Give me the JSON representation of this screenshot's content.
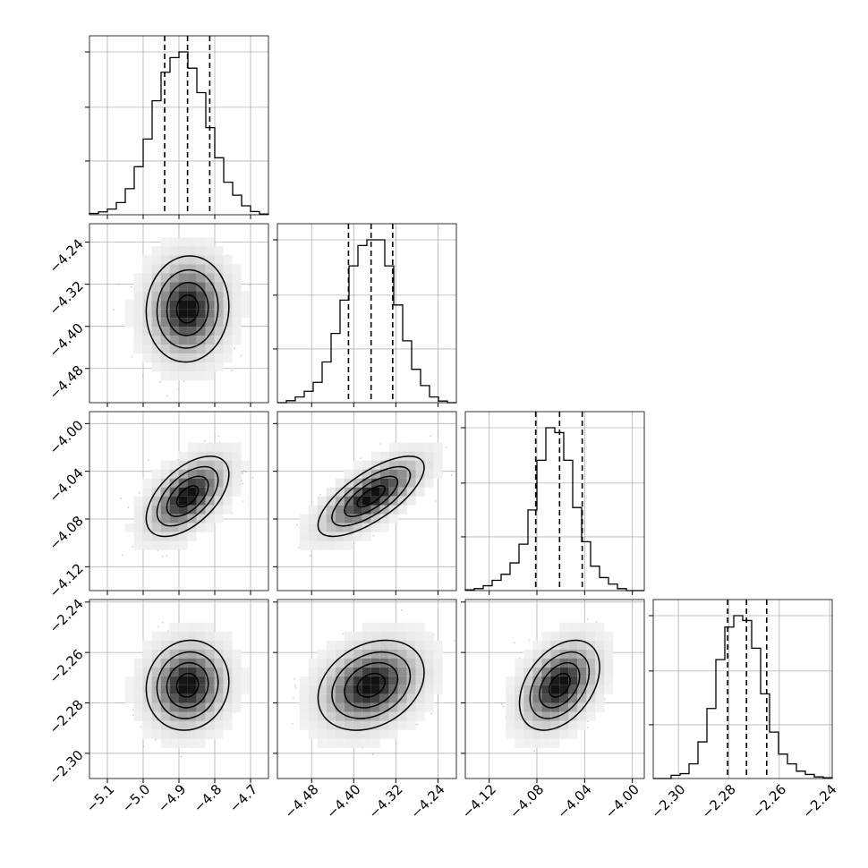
{
  "chart_data": {
    "type": "corner",
    "parameters": [
      {
        "id": "p0",
        "range": [
          -5.15,
          -4.65
        ],
        "ticks": [
          -5.1,
          -5.0,
          -4.9,
          -4.8,
          -4.7
        ],
        "tick_labels": [
          "−5.1",
          "−5.0",
          "−4.9",
          "−4.8",
          "−4.7"
        ],
        "quantiles": [
          -4.94,
          -4.876,
          -4.814
        ],
        "hist": [
          0.008,
          0.018,
          0.035,
          0.075,
          0.16,
          0.295,
          0.465,
          0.7,
          0.875,
          0.965,
          1.0,
          0.9,
          0.75,
          0.535,
          0.35,
          0.2,
          0.12,
          0.055,
          0.02,
          0.005
        ]
      },
      {
        "id": "p1",
        "range": [
          -4.545,
          -4.205
        ],
        "ticks": [
          -4.48,
          -4.4,
          -4.32,
          -4.24
        ],
        "tick_labels": [
          "−4.48",
          "−4.40",
          "−4.32",
          "−4.24"
        ],
        "quantiles": [
          -4.41,
          -4.367,
          -4.326
        ],
        "hist": [
          0.0,
          0.012,
          0.035,
          0.07,
          0.125,
          0.25,
          0.425,
          0.63,
          0.84,
          0.965,
          1.0,
          1.0,
          0.84,
          0.6,
          0.38,
          0.205,
          0.105,
          0.035,
          0.01,
          0.0
        ]
      },
      {
        "id": "p2",
        "range": [
          -4.14,
          -3.99
        ],
        "ticks": [
          -4.12,
          -4.08,
          -4.04,
          -4.0
        ],
        "tick_labels": [
          "−4.12",
          "−4.08",
          "−4.04",
          "−4.00"
        ],
        "quantiles": [
          -4.081,
          -4.061,
          -4.042
        ],
        "hist": [
          0.005,
          0.012,
          0.03,
          0.063,
          0.1,
          0.17,
          0.285,
          0.495,
          0.8,
          1.0,
          0.97,
          0.8,
          0.51,
          0.3,
          0.15,
          0.08,
          0.04,
          0.012,
          0.0,
          0.0
        ]
      },
      {
        "id": "p3",
        "range": [
          -2.31,
          -2.239
        ],
        "ticks": [
          -2.3,
          -2.28,
          -2.26,
          -2.24
        ],
        "tick_labels": [
          "−2.30",
          "−2.28",
          "−2.26",
          "−2.24"
        ],
        "quantiles": [
          -2.2805,
          -2.273,
          -2.265
        ],
        "hist": [
          0.0,
          0.0,
          0.02,
          0.03,
          0.09,
          0.225,
          0.43,
          0.73,
          0.93,
          1.0,
          0.97,
          0.8,
          0.52,
          0.285,
          0.15,
          0.09,
          0.045,
          0.025,
          0.01,
          0.005
        ]
      }
    ],
    "panels": [
      {
        "row": 1,
        "col": 0,
        "mean": [
          -4.876,
          -4.367
        ],
        "sd": [
          0.055,
          0.048
        ],
        "corr": 0.05
      },
      {
        "row": 2,
        "col": 0,
        "mean": [
          -4.876,
          -4.061
        ],
        "sd": [
          0.055,
          0.016
        ],
        "corr": 0.55
      },
      {
        "row": 2,
        "col": 1,
        "mean": [
          -4.367,
          -4.061
        ],
        "sd": [
          0.048,
          0.016
        ],
        "corr": 0.72
      },
      {
        "row": 3,
        "col": 0,
        "mean": [
          -4.876,
          -2.273
        ],
        "sd": [
          0.055,
          0.0085
        ],
        "corr": 0.08
      },
      {
        "row": 3,
        "col": 1,
        "mean": [
          -4.367,
          -2.273
        ],
        "sd": [
          0.048,
          0.0085
        ],
        "corr": 0.28
      },
      {
        "row": 3,
        "col": 2,
        "mean": [
          -4.061,
          -2.273
        ],
        "sd": [
          0.016,
          0.0085
        ],
        "corr": 0.4
      }
    ],
    "grid": true,
    "colors": {
      "samples": "#9a9a9a",
      "line": "#000000",
      "grid": "#b0b0b0"
    }
  }
}
